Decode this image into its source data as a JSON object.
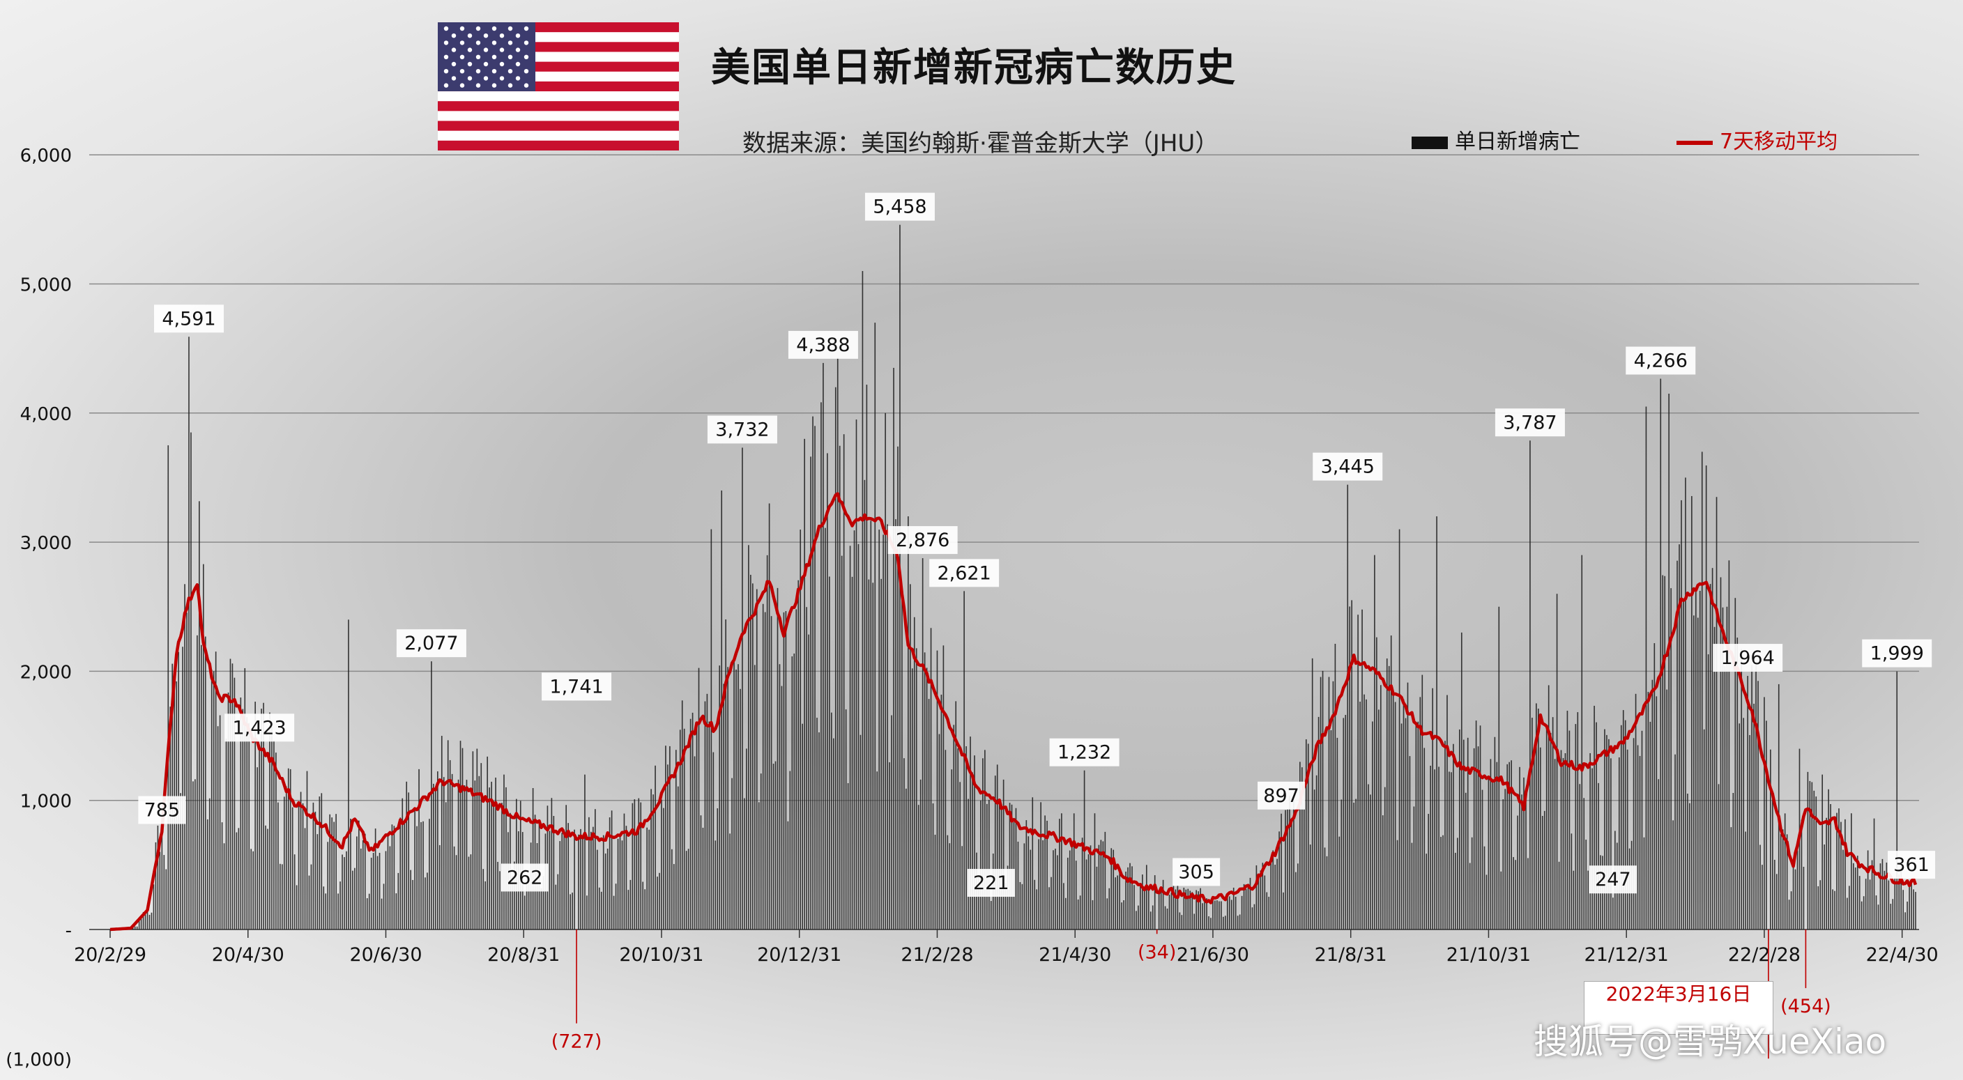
{
  "title": "美国单日新增新冠病亡数历史",
  "subtitle": "数据来源：美国约翰斯·霍普金斯大学（JHU）",
  "legend": {
    "bars_label": "单日新增病亡",
    "line_label": "7天移动平均"
  },
  "annotation": {
    "text": "2022年3月16日"
  },
  "watermark": "搜狐号@雪鸮XueXiao",
  "colors": {
    "bars": "#1a1a1a",
    "line": "#c00000",
    "negative_label": "#c00000"
  },
  "chart_data": {
    "type": "bar",
    "ylim": [
      -1000,
      6000
    ],
    "ytick_labels": [
      "(1,000)",
      "-",
      "1,000",
      "2,000",
      "3,000",
      "4,000",
      "5,000",
      "6,000"
    ],
    "grid": true,
    "legend_position": "top-right",
    "x_tick_labels": [
      "20/2/29",
      "20/4/30",
      "20/6/30",
      "20/8/31",
      "20/10/31",
      "20/12/31",
      "21/2/28",
      "21/4/30",
      "21/6/30",
      "21/8/31",
      "21/10/31",
      "21/12/31",
      "22/2/28",
      "22/4/30"
    ],
    "anchors": [
      [
        0,
        0
      ],
      [
        10,
        10
      ],
      [
        18,
        150
      ],
      [
        25,
        785
      ],
      [
        32,
        2150
      ],
      [
        37,
        2500
      ],
      [
        42,
        2700
      ],
      [
        45,
        2200
      ],
      [
        52,
        1800
      ],
      [
        60,
        1780
      ],
      [
        68,
        1500
      ],
      [
        78,
        1300
      ],
      [
        88,
        1000
      ],
      [
        100,
        850
      ],
      [
        112,
        650
      ],
      [
        118,
        850
      ],
      [
        126,
        600
      ],
      [
        135,
        750
      ],
      [
        148,
        950
      ],
      [
        160,
        1150
      ],
      [
        172,
        1080
      ],
      [
        185,
        980
      ],
      [
        198,
        850
      ],
      [
        210,
        800
      ],
      [
        225,
        720
      ],
      [
        240,
        720
      ],
      [
        255,
        770
      ],
      [
        265,
        1000
      ],
      [
        275,
        1300
      ],
      [
        285,
        1650
      ],
      [
        292,
        1550
      ],
      [
        298,
        1950
      ],
      [
        305,
        2300
      ],
      [
        312,
        2500
      ],
      [
        318,
        2700
      ],
      [
        325,
        2300
      ],
      [
        333,
        2650
      ],
      [
        342,
        3100
      ],
      [
        350,
        3380
      ],
      [
        358,
        3150
      ],
      [
        365,
        3200
      ],
      [
        372,
        3150
      ],
      [
        380,
        2900
      ],
      [
        385,
        2200
      ],
      [
        393,
        2000
      ],
      [
        402,
        1700
      ],
      [
        410,
        1400
      ],
      [
        418,
        1100
      ],
      [
        428,
        1000
      ],
      [
        438,
        800
      ],
      [
        448,
        750
      ],
      [
        460,
        700
      ],
      [
        472,
        620
      ],
      [
        482,
        560
      ],
      [
        490,
        400
      ],
      [
        500,
        330
      ],
      [
        510,
        300
      ],
      [
        520,
        250
      ],
      [
        530,
        230
      ],
      [
        540,
        260
      ],
      [
        552,
        350
      ],
      [
        562,
        600
      ],
      [
        572,
        900
      ],
      [
        582,
        1400
      ],
      [
        590,
        1650
      ],
      [
        600,
        2100
      ],
      [
        610,
        2000
      ],
      [
        622,
        1800
      ],
      [
        632,
        1550
      ],
      [
        642,
        1450
      ],
      [
        652,
        1250
      ],
      [
        662,
        1200
      ],
      [
        672,
        1150
      ],
      [
        682,
        950
      ],
      [
        690,
        1650
      ],
      [
        700,
        1300
      ],
      [
        710,
        1250
      ],
      [
        720,
        1350
      ],
      [
        730,
        1450
      ],
      [
        738,
        1650
      ],
      [
        745,
        1850
      ],
      [
        752,
        2200
      ],
      [
        758,
        2550
      ],
      [
        765,
        2650
      ],
      [
        770,
        2700
      ],
      [
        778,
        2300
      ],
      [
        785,
        2000
      ],
      [
        792,
        1700
      ],
      [
        798,
        1300
      ],
      [
        806,
        800
      ],
      [
        812,
        500
      ],
      [
        818,
        950
      ],
      [
        825,
        800
      ],
      [
        832,
        850
      ],
      [
        838,
        600
      ],
      [
        845,
        500
      ],
      [
        855,
        420
      ],
      [
        863,
        380
      ],
      [
        871,
        360
      ]
    ],
    "spikes": [
      [
        25,
        785
      ],
      [
        28,
        3750
      ],
      [
        33,
        2150
      ],
      [
        38,
        4591
      ],
      [
        39,
        3850
      ],
      [
        50,
        2000
      ],
      [
        60,
        1950
      ],
      [
        72,
        1423
      ],
      [
        115,
        2400
      ],
      [
        155,
        2077
      ],
      [
        160,
        1500
      ],
      [
        175,
        1380
      ],
      [
        190,
        1200
      ],
      [
        200,
        262
      ],
      [
        225,
        1741
      ],
      [
        229,
        1200
      ],
      [
        290,
        3100
      ],
      [
        295,
        3400
      ],
      [
        305,
        3732
      ],
      [
        318,
        3300
      ],
      [
        335,
        3800
      ],
      [
        340,
        3900
      ],
      [
        344,
        4388
      ],
      [
        350,
        4200
      ],
      [
        360,
        3950
      ],
      [
        363,
        5100
      ],
      [
        369,
        4700
      ],
      [
        374,
        4000
      ],
      [
        378,
        4350
      ],
      [
        381,
        5458
      ],
      [
        385,
        3200
      ],
      [
        392,
        2876
      ],
      [
        402,
        2200
      ],
      [
        412,
        2621
      ],
      [
        420,
        1000
      ],
      [
        425,
        221
      ],
      [
        470,
        1232
      ],
      [
        475,
        900
      ],
      [
        500,
        500
      ],
      [
        524,
        305
      ],
      [
        550,
        400
      ],
      [
        565,
        897
      ],
      [
        580,
        2100
      ],
      [
        597,
        3445
      ],
      [
        610,
        2900
      ],
      [
        622,
        3100
      ],
      [
        640,
        3200
      ],
      [
        652,
        2300
      ],
      [
        670,
        2500
      ],
      [
        685,
        3787
      ],
      [
        698,
        2600
      ],
      [
        710,
        2900
      ],
      [
        725,
        247
      ],
      [
        741,
        4050
      ],
      [
        748,
        4266
      ],
      [
        752,
        4150
      ],
      [
        760,
        3500
      ],
      [
        768,
        3700
      ],
      [
        775,
        3350
      ],
      [
        780,
        2500
      ],
      [
        790,
        1964
      ],
      [
        798,
        1800
      ],
      [
        805,
        1900
      ],
      [
        815,
        1400
      ],
      [
        826,
        1200
      ],
      [
        840,
        900
      ],
      [
        851,
        860
      ],
      [
        862,
        1999
      ],
      [
        869,
        361
      ]
    ],
    "negatives": [
      [
        225,
        -727
      ],
      [
        505,
        -34
      ],
      [
        800,
        -1000
      ],
      [
        818,
        -454
      ]
    ],
    "point_labels": [
      {
        "day": 25,
        "value": 785,
        "text": "785",
        "pos": "above"
      },
      {
        "day": 38,
        "value": 4591,
        "text": "4,591",
        "pos": "above"
      },
      {
        "day": 72,
        "value": 1423,
        "text": "1,423",
        "pos": "above"
      },
      {
        "day": 155,
        "value": 2077,
        "text": "2,077",
        "pos": "above"
      },
      {
        "day": 200,
        "value": 262,
        "text": "262",
        "pos": "above"
      },
      {
        "day": 225,
        "value": 1741,
        "text": "1,741",
        "pos": "above"
      },
      {
        "day": 225,
        "value": -727,
        "text": "(727)",
        "pos": "below",
        "negative": true
      },
      {
        "day": 305,
        "value": 3732,
        "text": "3,732",
        "pos": "above"
      },
      {
        "day": 344,
        "value": 4388,
        "text": "4,388",
        "pos": "above"
      },
      {
        "day": 381,
        "value": 5458,
        "text": "5,458",
        "pos": "above"
      },
      {
        "day": 392,
        "value": 2876,
        "text": "2,876",
        "pos": "above"
      },
      {
        "day": 412,
        "value": 2621,
        "text": "2,621",
        "pos": "above"
      },
      {
        "day": 425,
        "value": 221,
        "text": "221",
        "pos": "above"
      },
      {
        "day": 470,
        "value": 1232,
        "text": "1,232",
        "pos": "above"
      },
      {
        "day": 505,
        "value": -34,
        "text": "(34)",
        "pos": "below",
        "negative": true
      },
      {
        "day": 524,
        "value": 305,
        "text": "305",
        "pos": "above"
      },
      {
        "day": 565,
        "value": 897,
        "text": "897",
        "pos": "above"
      },
      {
        "day": 597,
        "value": 3445,
        "text": "3,445",
        "pos": "above"
      },
      {
        "day": 685,
        "value": 3787,
        "text": "3,787",
        "pos": "above"
      },
      {
        "day": 725,
        "value": 247,
        "text": "247",
        "pos": "above"
      },
      {
        "day": 748,
        "value": 4266,
        "text": "4,266",
        "pos": "above"
      },
      {
        "day": 790,
        "value": 1964,
        "text": "1,964",
        "pos": "above"
      },
      {
        "day": 818,
        "value": -454,
        "text": "(454)",
        "pos": "below",
        "negative": true
      },
      {
        "day": 862,
        "value": 1999,
        "text": "1,999",
        "pos": "above"
      },
      {
        "day": 869,
        "value": 361,
        "text": "361",
        "pos": "above"
      }
    ]
  }
}
